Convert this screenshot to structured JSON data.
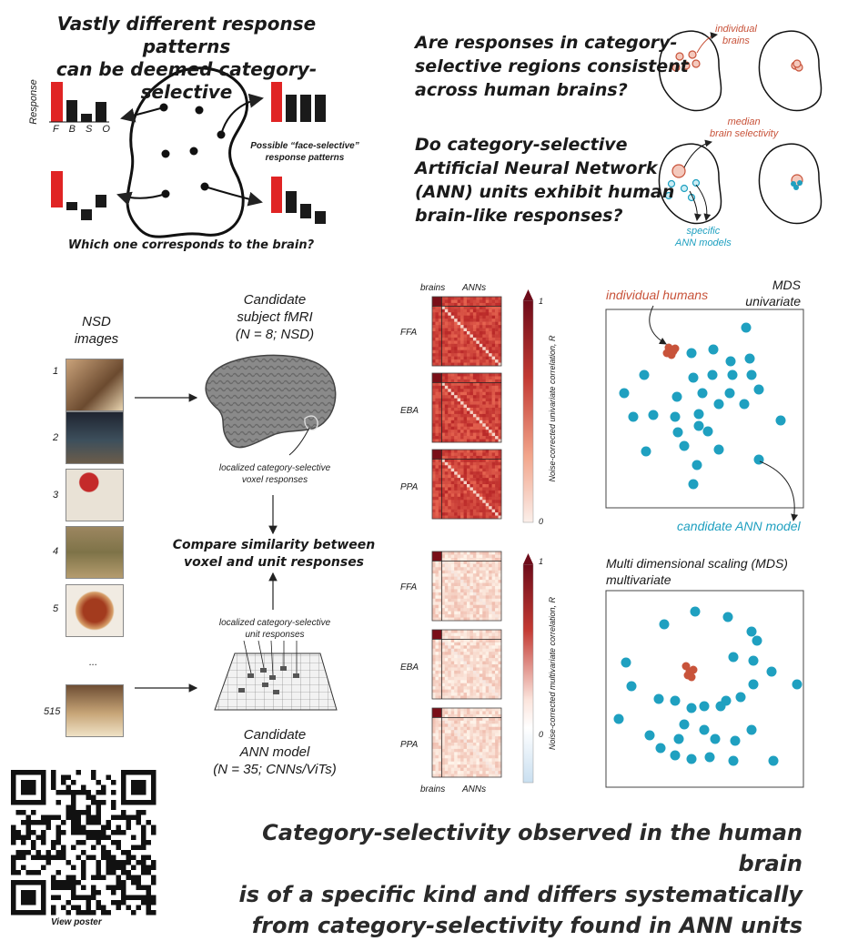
{
  "top_left": {
    "title_line1": "Vastly different response patterns",
    "title_line2": "can be deemed category-selective",
    "response_label": "Response",
    "categories": [
      "F",
      "B",
      "S",
      "O"
    ],
    "possible_line1": "Possible “face-selective”",
    "possible_line2": "response patterns",
    "question": "Which one corresponds to the brain?"
  },
  "top_right": {
    "q1_line1": "Are responses in category-",
    "q1_line2": "selective regions consistent",
    "q1_line3": "across human brains?",
    "q2_line1": "Do category-selective",
    "q2_line2": "Artificial Neural Network",
    "q2_line3": "(ANN) units exhibit human",
    "q2_line4": "brain-like responses?",
    "individual_line1": "individual",
    "individual_line2": "brains",
    "median_line1": "median",
    "median_line2": "brain selectivity",
    "specific_line1": "specific",
    "specific_line2": "ANN models"
  },
  "pipeline": {
    "nsd_line1": "NSD",
    "nsd_line2": "images",
    "image_numbers": [
      "1",
      "2",
      "3",
      "4",
      "5",
      "...",
      "515"
    ],
    "fmri_line1": "Candidate",
    "fmri_line2": "subject fMRI",
    "fmri_line3": "(N = 8; NSD)",
    "voxel_line1": "localized category-selective",
    "voxel_line2": "voxel responses",
    "compare_line1": "Compare similarity between",
    "compare_line2": "voxel and unit responses",
    "unit_line1": "localized category-selective",
    "unit_line2": "unit responses",
    "ann_line1": "Candidate",
    "ann_line2": "ANN model",
    "ann_line3": "(N = 35; CNNs/ViTs)"
  },
  "heatmaps": {
    "top_col_labels": [
      "brains",
      "ANNs"
    ],
    "bottom_col_labels": [
      "brains",
      "ANNs"
    ],
    "rows_univariate": [
      "FFA",
      "EBA",
      "PPA"
    ],
    "rows_multivariate": [
      "FFA",
      "EBA",
      "PPA"
    ],
    "cbar_univariate_label": "Noise-corrected univariate correlation, R",
    "cbar_univariate_ticks": [
      "1",
      "0"
    ],
    "cbar_multivariate_label": "Noise-corrected multivariate correlation, R",
    "cbar_multivariate_ticks": [
      "1",
      "0"
    ]
  },
  "mds": {
    "univariate_title_line1": "MDS",
    "univariate_title_line2": "univariate",
    "individual_humans": "individual humans",
    "candidate_ann": "candidate ANN model",
    "multivariate_title_line1": "Multi dimensional scaling (MDS)",
    "multivariate_title_line2": "multivariate",
    "human_color": "#c8533a",
    "ann_color": "#1fa0c0"
  },
  "footer": {
    "qr_caption": "View poster",
    "conclusion_line1": "Category-selectivity observed in the human brain",
    "conclusion_line2": "is of a specific kind and differs systematically",
    "conclusion_line3": "from category-selectivity found in ANN units"
  },
  "colors": {
    "accent_red": "#e02424",
    "heat_dark": "#7a0f18",
    "heat_mid": "#c8443c",
    "cyan": "#1fa0c0"
  }
}
